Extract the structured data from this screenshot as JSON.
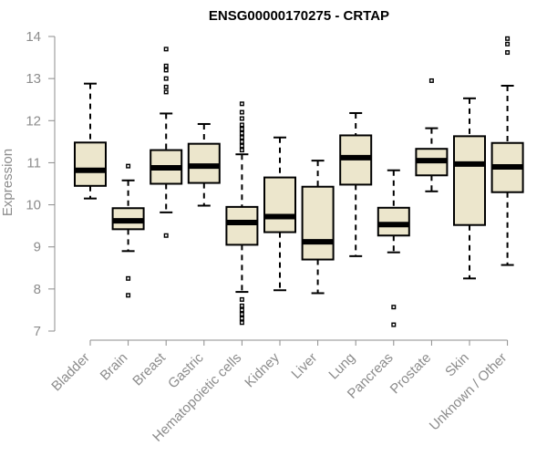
{
  "chart_data": {
    "type": "boxplot",
    "title": "ENSG00000170275 - CRTAP",
    "ylabel": "Expression",
    "ylim": [
      7,
      14
    ],
    "yticks": [
      7,
      8,
      9,
      10,
      11,
      12,
      13,
      14
    ],
    "colors": {
      "box_fill": "#ece6cc",
      "box_stroke": "#000000",
      "axis": "#8c8c8c"
    },
    "categories": [
      "Bladder",
      "Brain",
      "Breast",
      "Gastric",
      "Hematopoietic cells",
      "Kidney",
      "Liver",
      "Lung",
      "Pancreas",
      "Prostate",
      "Skin",
      "Unknown / Other"
    ],
    "boxes": [
      {
        "category": "Bladder",
        "min": 10.15,
        "q1": 10.45,
        "median": 10.82,
        "q3": 11.48,
        "max": 12.88,
        "outliers": []
      },
      {
        "category": "Brain",
        "min": 8.9,
        "q1": 9.42,
        "median": 9.62,
        "q3": 9.92,
        "max": 10.58,
        "outliers": [
          10.92,
          8.25,
          7.85
        ]
      },
      {
        "category": "Breast",
        "min": 9.82,
        "q1": 10.5,
        "median": 10.88,
        "q3": 11.3,
        "max": 12.17,
        "outliers": [
          13.7,
          13.3,
          13.2,
          13.0,
          12.8,
          12.68,
          9.27
        ]
      },
      {
        "category": "Gastric",
        "min": 9.98,
        "q1": 10.52,
        "median": 10.92,
        "q3": 11.45,
        "max": 11.92,
        "outliers": []
      },
      {
        "category": "Hematopoietic cells",
        "min": 7.93,
        "q1": 9.05,
        "median": 9.58,
        "q3": 9.95,
        "max": 11.2,
        "outliers": [
          12.4,
          12.2,
          12.05,
          11.9,
          11.8,
          11.7,
          11.6,
          11.5,
          11.4,
          11.3,
          7.75,
          7.6,
          7.5,
          7.4,
          7.3,
          7.2
        ]
      },
      {
        "category": "Kidney",
        "min": 7.97,
        "q1": 9.35,
        "median": 9.72,
        "q3": 10.65,
        "max": 11.6,
        "outliers": []
      },
      {
        "category": "Liver",
        "min": 7.9,
        "q1": 8.7,
        "median": 9.12,
        "q3": 10.43,
        "max": 11.05,
        "outliers": []
      },
      {
        "category": "Lung",
        "min": 8.78,
        "q1": 10.48,
        "median": 11.12,
        "q3": 11.65,
        "max": 12.18,
        "outliers": []
      },
      {
        "category": "Pancreas",
        "min": 8.87,
        "q1": 9.27,
        "median": 9.53,
        "q3": 9.93,
        "max": 10.82,
        "outliers": [
          7.57,
          7.15
        ]
      },
      {
        "category": "Prostate",
        "min": 10.32,
        "q1": 10.7,
        "median": 11.05,
        "q3": 11.33,
        "max": 11.82,
        "outliers": [
          12.95
        ]
      },
      {
        "category": "Skin",
        "min": 8.25,
        "q1": 9.52,
        "median": 10.97,
        "q3": 11.63,
        "max": 12.53,
        "outliers": []
      },
      {
        "category": "Unknown / Other",
        "min": 8.57,
        "q1": 10.3,
        "median": 10.9,
        "q3": 11.47,
        "max": 12.83,
        "outliers": [
          13.95,
          13.82,
          13.62
        ]
      }
    ]
  }
}
